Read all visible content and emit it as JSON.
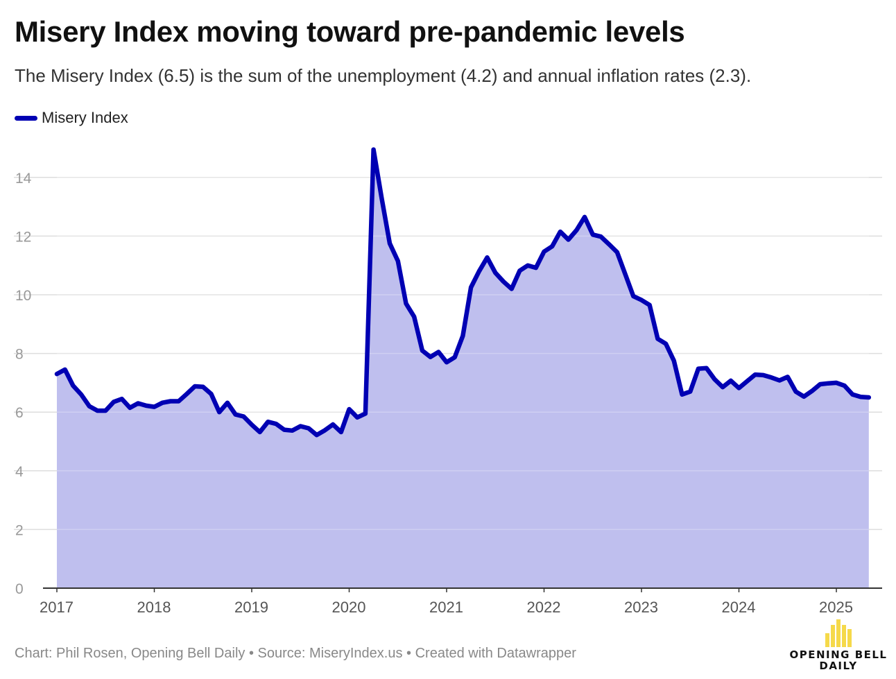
{
  "title": "Misery Index moving toward pre-pandemic levels",
  "subtitle": "The Misery Index (6.5) is the sum of the unemployment (4.2) and annual inflation rates (2.3).",
  "footer": "Chart: Phil Rosen, Opening Bell Daily • Source: MiseryIndex.us • Created with Datawrapper",
  "logo": {
    "line1": "OPENING BELL",
    "line2": "DAILY",
    "bar_color": "#f5d94a"
  },
  "colors": {
    "line": "#0000b3",
    "area": "#bfbfee",
    "grid": "#dddddd",
    "tick": "#999999",
    "axis": "#333333"
  },
  "chart_data": {
    "type": "area",
    "title": "Misery Index moving toward pre-pandemic levels",
    "ylim": [
      0,
      15
    ],
    "yticks": [
      0,
      2,
      4,
      6,
      8,
      10,
      12,
      14
    ],
    "xticks": [
      "2017",
      "2018",
      "2019",
      "2020",
      "2021",
      "2022",
      "2023",
      "2024",
      "2025"
    ],
    "grid": true,
    "legend": "top-left",
    "series": [
      {
        "name": "Misery Index",
        "x_start": "2017-01",
        "frequency": "monthly",
        "values": [
          7.3,
          7.45,
          6.9,
          6.6,
          6.2,
          6.05,
          6.05,
          6.35,
          6.45,
          6.15,
          6.3,
          6.22,
          6.18,
          6.32,
          6.37,
          6.37,
          6.62,
          6.88,
          6.86,
          6.62,
          6.0,
          6.32,
          5.92,
          5.85,
          5.57,
          5.32,
          5.67,
          5.6,
          5.4,
          5.37,
          5.52,
          5.45,
          5.22,
          5.38,
          5.58,
          5.32,
          6.1,
          5.82,
          5.95,
          14.95,
          13.3,
          11.75,
          11.15,
          9.7,
          9.25,
          8.1,
          7.88,
          8.05,
          7.7,
          7.87,
          8.6,
          10.25,
          10.8,
          11.27,
          10.75,
          10.45,
          10.2,
          10.82,
          11.0,
          10.92,
          11.47,
          11.65,
          12.15,
          11.88,
          12.2,
          12.65,
          12.05,
          11.98,
          11.72,
          11.45,
          10.7,
          9.95,
          9.82,
          9.65,
          8.5,
          8.33,
          7.75,
          6.6,
          6.7,
          7.48,
          7.5,
          7.12,
          6.85,
          7.07,
          6.82,
          7.05,
          7.28,
          7.26,
          7.18,
          7.08,
          7.2,
          6.7,
          6.53,
          6.72,
          6.95,
          6.98,
          7.0,
          6.9,
          6.6,
          6.52,
          6.5
        ]
      }
    ]
  }
}
